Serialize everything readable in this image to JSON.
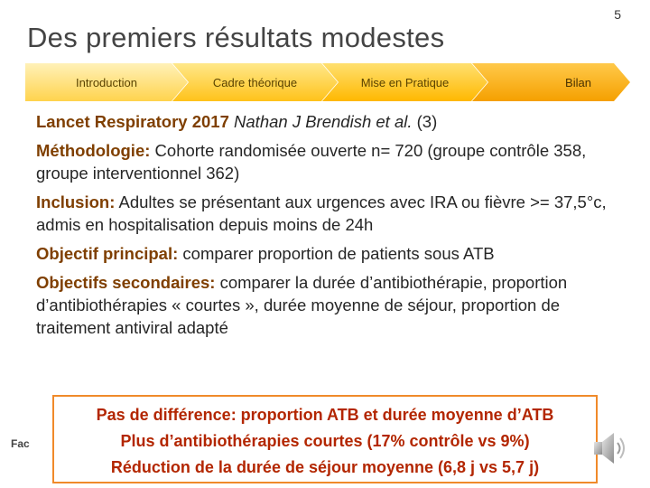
{
  "slide": {
    "page_number": "5",
    "title": "Des premiers résultats modestes",
    "footer_logo": "Fac"
  },
  "breadcrumb": {
    "items": [
      {
        "label": "Introduction"
      },
      {
        "label": "Cadre théorique"
      },
      {
        "label": "Mise en Pratique"
      },
      {
        "label": "Bilan"
      }
    ]
  },
  "content": {
    "reference": {
      "journal": "Lancet Respiratory 2017",
      "authors": "Nathan J Brendish et al.",
      "ref": "(3)"
    },
    "methodology": {
      "label": "Méthodologie:",
      "text": "Cohorte randomisée ouverte n= 720 (groupe contrôle 358, groupe interventionnel 362)"
    },
    "inclusion": {
      "label": "Inclusion:",
      "text": "Adultes se présentant aux urgences avec IRA ou fièvre >= 37,5°c, admis en hospitalisation depuis moins de 24h"
    },
    "primary_objective": {
      "label": "Objectif principal:",
      "text": "comparer proportion de patients sous ATB"
    },
    "secondary_objectives": {
      "label": "Objectifs secondaires:",
      "text": "comparer la durée d’antibiothérapie, proportion d’antibiothérapies « courtes », durée moyenne de séjour, proportion de traitement antiviral adapté"
    }
  },
  "conclusion": {
    "line1": "Pas de différence:  proportion ATB et durée moyenne d’ATB",
    "line2": "Plus d’antibiothérapies courtes (17% contrôle vs 9%)",
    "line3": "Réduction de la durée de séjour moyenne (6,8 j vs 5,7 j)"
  },
  "colors": {
    "accent": "#7f3f00",
    "conclusion_text": "#b32600",
    "conclusion_border": "#f08a2a",
    "breadcrumb": "#ffc21a"
  },
  "icons": {
    "audio": "speaker-icon"
  }
}
